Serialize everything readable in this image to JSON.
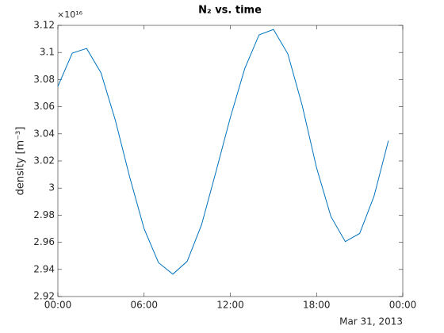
{
  "chart_data": {
    "type": "line",
    "title": "N₂ vs. time",
    "ylabel": "density [m⁻³]",
    "y_multiplier": "×10¹⁶",
    "x_date_label": "Mar 31, 2013",
    "x": [
      0,
      1,
      2,
      3,
      4,
      5,
      6,
      7,
      8,
      9,
      10,
      11,
      12,
      13,
      14,
      15,
      16,
      17,
      18,
      19,
      20,
      21,
      22,
      23
    ],
    "series": [
      {
        "color": "#0072bd",
        "values": [
          3.075,
          3.0995,
          3.103,
          3.085,
          3.05,
          3.008,
          2.97,
          2.945,
          2.9365,
          2.946,
          2.973,
          3.012,
          3.052,
          3.088,
          3.113,
          3.117,
          3.099,
          3.061,
          3.015,
          2.979,
          2.9605,
          2.9665,
          2.994,
          3.035
        ]
      }
    ],
    "xlim": [
      0,
      24
    ],
    "xticks": [
      {
        "value": 0,
        "label": "00:00"
      },
      {
        "value": 6,
        "label": "06:00"
      },
      {
        "value": 12,
        "label": "12:00"
      },
      {
        "value": 18,
        "label": "18:00"
      },
      {
        "value": 24,
        "label": "00:00"
      }
    ],
    "ylim": [
      2.92,
      3.12
    ],
    "yticks": [
      2.92,
      2.94,
      2.96,
      2.98,
      3,
      3.02,
      3.04,
      3.06,
      3.08,
      3.1,
      3.12
    ],
    "grid": false
  }
}
